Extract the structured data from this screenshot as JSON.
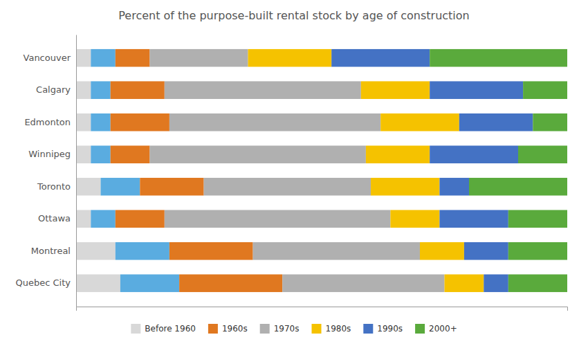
{
  "chart_data": {
    "type": "bar",
    "orientation": "horizontal",
    "stacked": true,
    "title": "Percent of the purpose-built rental stock by age of construction",
    "categories": [
      "Vancouver",
      "Calgary",
      "Edmonton",
      "Winnipeg",
      "Toronto",
      "Ottawa",
      "Montreal",
      "Quebec City"
    ],
    "series": [
      {
        "name": "Before 1960",
        "color": "#d8d8d8",
        "values": [
          3,
          3,
          3,
          3,
          5,
          3,
          8,
          9
        ]
      },
      {
        "color": "#5aace0",
        "values": [
          5,
          4,
          4,
          4,
          8,
          5,
          11,
          12
        ]
      },
      {
        "name": "1960s",
        "color": "#e07820",
        "values": [
          7,
          11,
          12,
          8,
          13,
          10,
          17,
          21
        ]
      },
      {
        "name": "1970s",
        "color": "#b0b0b0",
        "values": [
          20,
          40,
          43,
          44,
          34,
          46,
          34,
          33
        ]
      },
      {
        "name": "1980s",
        "color": "#f5c200",
        "values": [
          17,
          14,
          16,
          13,
          14,
          10,
          9,
          8
        ]
      },
      {
        "name": "1990s",
        "color": "#4472c4",
        "values": [
          20,
          19,
          15,
          18,
          6,
          14,
          9,
          5
        ]
      },
      {
        "name": "2000+",
        "color": "#5aaa3c",
        "values": [
          28,
          9,
          7,
          10,
          20,
          12,
          12,
          12
        ]
      }
    ],
    "xlim": [
      0,
      100
    ],
    "tick_labels": "y",
    "grid": false,
    "legend": "bottom"
  }
}
